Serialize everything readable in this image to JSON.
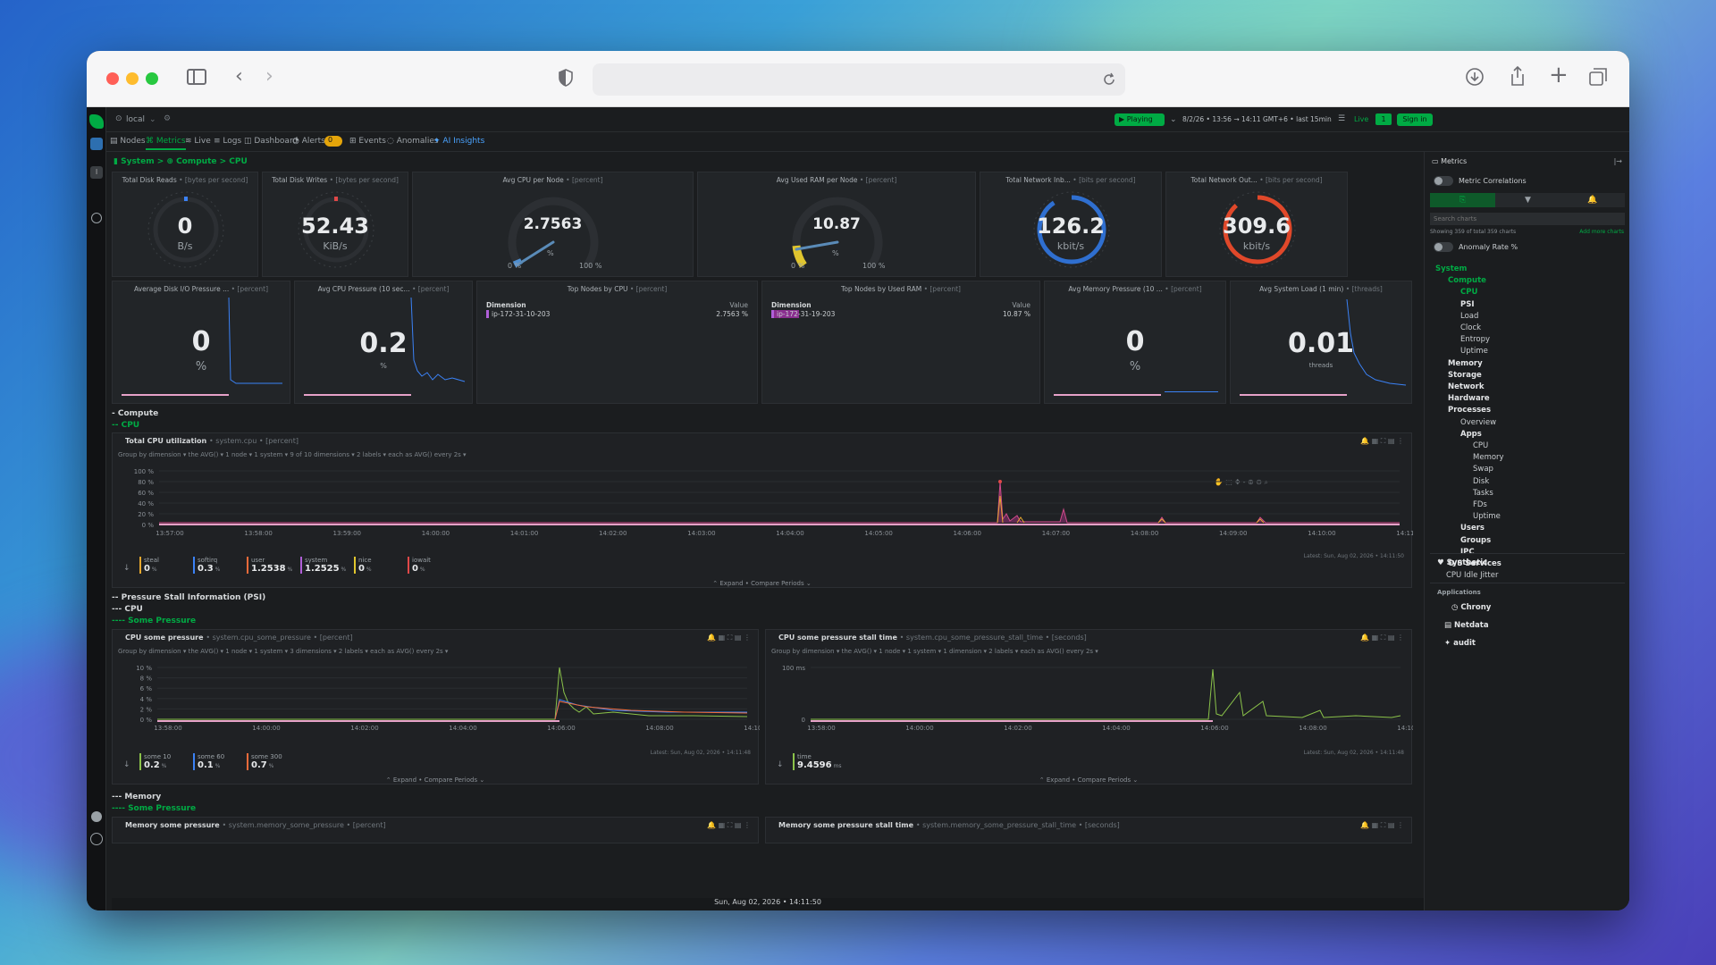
{
  "app": {
    "space": "local",
    "playing_label": "Playing",
    "timerange": "8/2/26 • 13:56 → 14:11 GMT+6 • last 15min",
    "live_label": "Live",
    "live_count": "1",
    "signin": "Sign in"
  },
  "tabs": [
    {
      "label": "Nodes"
    },
    {
      "label": "Metrics"
    },
    {
      "label": "Live"
    },
    {
      "label": "Logs"
    },
    {
      "label": "Dashboard"
    },
    {
      "label": "Alerts"
    },
    {
      "label": "0"
    },
    {
      "label": "Events"
    },
    {
      "label": "Anomalies"
    },
    {
      "label": "AI Insights"
    }
  ],
  "breadcrumb": "System > ⊕ Compute > CPU",
  "cards": [
    {
      "title": "Total Disk Reads",
      "unit": "• [bytes per second]",
      "value": "0",
      "sub": "B/s"
    },
    {
      "title": "Total Disk Writes",
      "unit": "• [bytes per second]",
      "value": "52.43",
      "sub": "KiB/s"
    },
    {
      "title": "Avg CPU per Node",
      "unit": "• [percent]",
      "value": "2.7563",
      "sub": "%",
      "min": "0 %",
      "max": "100 %"
    },
    {
      "title": "Avg Used RAM per Node",
      "unit": "• [percent]",
      "value": "10.87",
      "sub": "%",
      "min": "0 %",
      "max": "100 %"
    },
    {
      "title": "Total Network Inb...",
      "unit": "• [bits per second]",
      "value": "126.2",
      "sub": "kbit/s"
    },
    {
      "title": "Total Network Out...",
      "unit": "• [bits per second]",
      "value": "309.6",
      "sub": "kbit/s"
    },
    {
      "title": "Average Disk I/O Pressure ...",
      "unit": "• [percent]",
      "value": "0",
      "sub": "%"
    },
    {
      "title": "Avg CPU Pressure (10 sec...",
      "unit": "• [percent]",
      "value": "0.2",
      "sub": "%"
    },
    {
      "title": "Top Nodes by CPU",
      "unit": "• [percent]",
      "dim": "Dimension",
      "valh": "Value",
      "row": "ip-172-31-10-203",
      "rowv": "2.7563 %"
    },
    {
      "title": "Top Nodes by Used RAM",
      "unit": "• [percent]",
      "dim": "Dimension",
      "valh": "Value",
      "row": "ip-172-31-19-203",
      "rowv": "10.87 %"
    },
    {
      "title": "Avg Memory Pressure (10 ...",
      "unit": "• [percent]",
      "value": "0",
      "sub": "%"
    },
    {
      "title": "Avg System Load (1 min)",
      "unit": "• [threads]",
      "value": "0.01",
      "sub": "threads"
    }
  ],
  "sections": {
    "compute": "- Compute",
    "cpu": "-- CPU",
    "psi": "-- Pressure Stall Information (PSI)",
    "psi_cpu": "--- CPU",
    "some_pressure": "---- Some Pressure",
    "memory": "--- Memory",
    "mem_some": "---- Some Pressure"
  },
  "cpu_chart": {
    "title": "Total CPU utilization",
    "ctx": "• system.cpu • [percent]",
    "groupby": "Group by dimension ▾  the AVG() ▾  1 node ▾  1 system ▾  9 of 10 dimensions ▾  2 labels ▾  each as AVG() every 2s ▾",
    "yticks": [
      "100 %",
      "80 %",
      "60 %",
      "40 %",
      "20 %",
      "0 %"
    ],
    "xticks": [
      "13:57:00",
      "13:58:00",
      "13:59:00",
      "14:00:00",
      "14:01:00",
      "14:02:00",
      "14:03:00",
      "14:04:00",
      "14:05:00",
      "14:06:00",
      "14:07:00",
      "14:08:00",
      "14:09:00",
      "14:10:00",
      "14:11:00"
    ],
    "latest": "Latest: Sun, Aug 02, 2026 • 14:11:50",
    "legend": [
      {
        "name": "steal",
        "value": "0",
        "unit": "%",
        "color": "#e6a82e"
      },
      {
        "name": "softirq",
        "value": "0.3",
        "unit": "%",
        "color": "#3b82f6"
      },
      {
        "name": "user",
        "value": "1.2538",
        "unit": "%",
        "color": "#ef6b3a"
      },
      {
        "name": "system",
        "value": "1.2525",
        "unit": "%",
        "color": "#b05fd8"
      },
      {
        "name": "nice",
        "value": "0",
        "unit": "%",
        "color": "#e0c52e"
      },
      {
        "name": "iowait",
        "value": "0",
        "unit": "%",
        "color": "#e04848"
      }
    ],
    "expand": "⌃ Expand • Compare Periods ⌄"
  },
  "psi_chart": {
    "title": "CPU some pressure",
    "ctx": "• system.cpu_some_pressure • [percent]",
    "groupby": "Group by dimension ▾  the AVG() ▾  1 node ▾  1 system ▾  3 dimensions ▾  2 labels ▾  each as AVG() every 2s ▾",
    "yticks": [
      "10 %",
      "8 %",
      "6 %",
      "4 %",
      "2 %",
      "0 %"
    ],
    "xticks": [
      "13:58:00",
      "14:00:00",
      "14:02:00",
      "14:04:00",
      "14:06:00",
      "14:08:00",
      "14:10:00"
    ],
    "latest": "Latest: Sun, Aug 02, 2026 • 14:11:48",
    "legend": [
      {
        "name": "some 10",
        "value": "0.2",
        "unit": "%",
        "color": "#8bc34a"
      },
      {
        "name": "some 60",
        "value": "0.1",
        "unit": "%",
        "color": "#3b82f6"
      },
      {
        "name": "some 300",
        "value": "0.7",
        "unit": "%",
        "color": "#ef6b3a"
      }
    ],
    "expand": "⌃ Expand • Compare Periods ⌄"
  },
  "stall_chart": {
    "title": "CPU some pressure stall time",
    "ctx": "• system.cpu_some_pressure_stall_time • [seconds]",
    "groupby": "Group by dimension ▾  the AVG() ▾  1 node ▾  1 system ▾  1 dimension ▾  2 labels ▾  each as AVG() every 2s ▾",
    "yticks": [
      "100 ms",
      "0"
    ],
    "xticks": [
      "13:58:00",
      "14:00:00",
      "14:02:00",
      "14:04:00",
      "14:06:00",
      "14:08:00",
      "14:10:00"
    ],
    "latest": "Latest: Sun, Aug 02, 2026 • 14:11:48",
    "legend": [
      {
        "name": "time",
        "value": "9.4596",
        "unit": "ms",
        "color": "#8bc34a"
      }
    ],
    "expand": "⌃ Expand • Compare Periods ⌄"
  },
  "mem_charts": {
    "left_title": "Memory some pressure",
    "left_ctx": "• system.memory_some_pressure • [percent]",
    "right_title": "Memory some pressure stall time",
    "right_ctx": "• system.memory_some_pressure_stall_time • [seconds]"
  },
  "status": "Sun, Aug 02, 2026 • 14:11:50",
  "right_panel": {
    "header": "Metrics",
    "correlations": "Metric Correlations",
    "search_placeholder": "Search charts",
    "showing": "Showing 359 of total 359 charts",
    "add_more": "Add more charts",
    "anomaly": "Anomaly Rate %",
    "tree": [
      {
        "label": "System",
        "indent": 0,
        "kind": "green"
      },
      {
        "label": "Compute",
        "indent": 1,
        "kind": "green"
      },
      {
        "label": "CPU",
        "indent": 2,
        "kind": "green"
      },
      {
        "label": "PSI",
        "indent": 2,
        "kind": "bold"
      },
      {
        "label": "Load",
        "indent": 2,
        "kind": ""
      },
      {
        "label": "Clock",
        "indent": 2,
        "kind": ""
      },
      {
        "label": "Entropy",
        "indent": 2,
        "kind": ""
      },
      {
        "label": "Uptime",
        "indent": 2,
        "kind": ""
      },
      {
        "label": "Memory",
        "indent": 1,
        "kind": "bold"
      },
      {
        "label": "Storage",
        "indent": 1,
        "kind": "bold"
      },
      {
        "label": "Network",
        "indent": 1,
        "kind": "bold"
      },
      {
        "label": "Hardware",
        "indent": 1,
        "kind": "bold"
      },
      {
        "label": "Processes",
        "indent": 1,
        "kind": "bold"
      },
      {
        "label": "Overview",
        "indent": 2,
        "kind": ""
      },
      {
        "label": "Apps",
        "indent": 2,
        "kind": "bold"
      },
      {
        "label": "CPU",
        "indent": 3,
        "kind": ""
      },
      {
        "label": "Memory",
        "indent": 3,
        "kind": ""
      },
      {
        "label": "Swap",
        "indent": 3,
        "kind": ""
      },
      {
        "label": "Disk",
        "indent": 3,
        "kind": ""
      },
      {
        "label": "Tasks",
        "indent": 3,
        "kind": ""
      },
      {
        "label": "FDs",
        "indent": 3,
        "kind": ""
      },
      {
        "label": "Uptime",
        "indent": 3,
        "kind": ""
      },
      {
        "label": "Users",
        "indent": 2,
        "kind": "bold"
      },
      {
        "label": "Groups",
        "indent": 2,
        "kind": "bold"
      },
      {
        "label": "IPC",
        "indent": 2,
        "kind": "bold"
      },
      {
        "label": "O/S Services",
        "indent": 1,
        "kind": "bold"
      }
    ],
    "synthetic": "Synthetic",
    "jitter": "CPU Idle Jitter",
    "applications": "Applications",
    "chrony": "Chrony",
    "netdata": "Netdata",
    "audit": "audit"
  }
}
